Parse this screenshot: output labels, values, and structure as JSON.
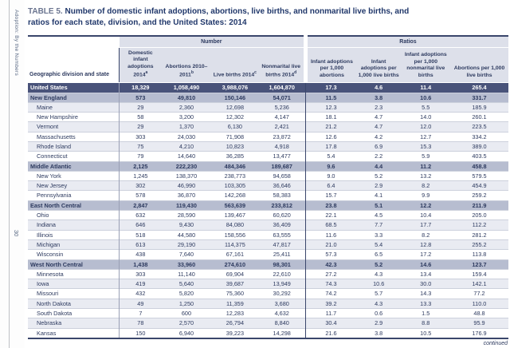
{
  "page": {
    "sidebar_vertical_text": "Adoption: By the Numbers",
    "page_number": "30",
    "continued_label": "continued"
  },
  "title": {
    "prefix": "TABLE 5.",
    "text": "Number of domestic infant adoptions, abortions, live births, and nonmarital live births, and ratios for each state, division, and the United States: 2014"
  },
  "colors": {
    "us_row_bg": "#49537a",
    "division_row_bg": "#b7bdd0",
    "stripe_bg": "#e9ebf2",
    "header_bg": "#dde0ea",
    "text_navy": "#2d3a5f",
    "border_dark": "#3a466b"
  },
  "table": {
    "groups": {
      "number": "Number",
      "ratios": "Ratios"
    },
    "columns": [
      {
        "label": "Geographic division and state",
        "sup": ""
      },
      {
        "label": "Domestic infant adoptions 2014",
        "sup": "a"
      },
      {
        "label": "Abortions 2010–2011",
        "sup": "b"
      },
      {
        "label": "Live births 2014",
        "sup": "c"
      },
      {
        "label": "Nonmarital live births 2014",
        "sup": "d"
      },
      {
        "label": "Infant adoptions per 1,000 abortions",
        "sup": ""
      },
      {
        "label": "Infant adoptions per 1,000 live births",
        "sup": ""
      },
      {
        "label": "Infant adoptions per 1,000 nonmarital live births",
        "sup": ""
      },
      {
        "label": "Abortions per 1,000 live births",
        "sup": ""
      }
    ],
    "rows": [
      {
        "type": "us",
        "name": "United States",
        "values": [
          "18,329",
          "1,058,490",
          "3,988,076",
          "1,604,870",
          "17.3",
          "4.6",
          "11.4",
          "265.4"
        ]
      },
      {
        "type": "division",
        "name": "New England",
        "values": [
          "573",
          "49,810",
          "150,146",
          "54,071",
          "11.5",
          "3.8",
          "10.6",
          "331.7"
        ]
      },
      {
        "type": "state",
        "name": "Maine",
        "values": [
          "29",
          "2,360",
          "12,698",
          "5,236",
          "12.3",
          "2.3",
          "5.5",
          "185.9"
        ]
      },
      {
        "type": "state",
        "name": "New Hampshire",
        "values": [
          "58",
          "3,200",
          "12,302",
          "4,147",
          "18.1",
          "4.7",
          "14.0",
          "260.1"
        ]
      },
      {
        "type": "state",
        "name": "Vermont",
        "values": [
          "29",
          "1,370",
          "6,130",
          "2,421",
          "21.2",
          "4.7",
          "12.0",
          "223.5"
        ]
      },
      {
        "type": "state",
        "name": "Massachusetts",
        "values": [
          "303",
          "24,030",
          "71,908",
          "23,872",
          "12.6",
          "4.2",
          "12.7",
          "334.2"
        ]
      },
      {
        "type": "state",
        "name": "Rhode Island",
        "values": [
          "75",
          "4,210",
          "10,823",
          "4,918",
          "17.8",
          "6.9",
          "15.3",
          "389.0"
        ]
      },
      {
        "type": "state",
        "name": "Connecticut",
        "values": [
          "79",
          "14,640",
          "36,285",
          "13,477",
          "5.4",
          "2.2",
          "5.9",
          "403.5"
        ]
      },
      {
        "type": "division",
        "name": "Middle Atlantic",
        "values": [
          "2,125",
          "222,230",
          "484,346",
          "189,687",
          "9.6",
          "4.4",
          "11.2",
          "458.8"
        ]
      },
      {
        "type": "state",
        "name": "New York",
        "values": [
          "1,245",
          "138,370",
          "238,773",
          "94,658",
          "9.0",
          "5.2",
          "13.2",
          "579.5"
        ]
      },
      {
        "type": "state",
        "name": "New Jersey",
        "values": [
          "302",
          "46,990",
          "103,305",
          "36,646",
          "6.4",
          "2.9",
          "8.2",
          "454.9"
        ]
      },
      {
        "type": "state",
        "name": "Pennsylvania",
        "values": [
          "578",
          "36,870",
          "142,268",
          "58,383",
          "15.7",
          "4.1",
          "9.9",
          "259.2"
        ]
      },
      {
        "type": "division",
        "name": "East North Central",
        "values": [
          "2,847",
          "119,430",
          "563,639",
          "233,812",
          "23.8",
          "5.1",
          "12.2",
          "211.9"
        ]
      },
      {
        "type": "state",
        "name": "Ohio",
        "values": [
          "632",
          "28,590",
          "139,467",
          "60,620",
          "22.1",
          "4.5",
          "10.4",
          "205.0"
        ]
      },
      {
        "type": "state",
        "name": "Indiana",
        "values": [
          "646",
          "9,430",
          "84,080",
          "36,409",
          "68.5",
          "7.7",
          "17.7",
          "112.2"
        ]
      },
      {
        "type": "state",
        "name": "Illinois",
        "values": [
          "518",
          "44,580",
          "158,556",
          "63,555",
          "11.6",
          "3.3",
          "8.2",
          "281.2"
        ]
      },
      {
        "type": "state",
        "name": "Michigan",
        "values": [
          "613",
          "29,190",
          "114,375",
          "47,817",
          "21.0",
          "5.4",
          "12.8",
          "255.2"
        ]
      },
      {
        "type": "state",
        "name": "Wisconsin",
        "values": [
          "438",
          "7,640",
          "67,161",
          "25,411",
          "57.3",
          "6.5",
          "17.2",
          "113.8"
        ]
      },
      {
        "type": "division",
        "name": "West North Central",
        "values": [
          "1,438",
          "33,960",
          "274,610",
          "98,301",
          "42.3",
          "5.2",
          "14.6",
          "123.7"
        ]
      },
      {
        "type": "state",
        "name": "Minnesota",
        "values": [
          "303",
          "11,140",
          "69,904",
          "22,610",
          "27.2",
          "4.3",
          "13.4",
          "159.4"
        ]
      },
      {
        "type": "state",
        "name": "Iowa",
        "values": [
          "419",
          "5,640",
          "39,687",
          "13,949",
          "74.3",
          "10.6",
          "30.0",
          "142.1"
        ]
      },
      {
        "type": "state",
        "name": "Missouri",
        "values": [
          "432",
          "5,820",
          "75,360",
          "30,292",
          "74.2",
          "5.7",
          "14.3",
          "77.2"
        ]
      },
      {
        "type": "state",
        "name": "North Dakota",
        "values": [
          "49",
          "1,250",
          "11,359",
          "3,680",
          "39.2",
          "4.3",
          "13.3",
          "110.0"
        ]
      },
      {
        "type": "state",
        "name": "South Dakota",
        "values": [
          "7",
          "600",
          "12,283",
          "4,632",
          "11.7",
          "0.6",
          "1.5",
          "48.8"
        ]
      },
      {
        "type": "state",
        "name": "Nebraska",
        "values": [
          "78",
          "2,570",
          "26,794",
          "8,840",
          "30.4",
          "2.9",
          "8.8",
          "95.9"
        ]
      },
      {
        "type": "state",
        "name": "Kansas",
        "values": [
          "150",
          "6,940",
          "39,223",
          "14,298",
          "21.6",
          "3.8",
          "10.5",
          "176.9"
        ]
      }
    ]
  }
}
